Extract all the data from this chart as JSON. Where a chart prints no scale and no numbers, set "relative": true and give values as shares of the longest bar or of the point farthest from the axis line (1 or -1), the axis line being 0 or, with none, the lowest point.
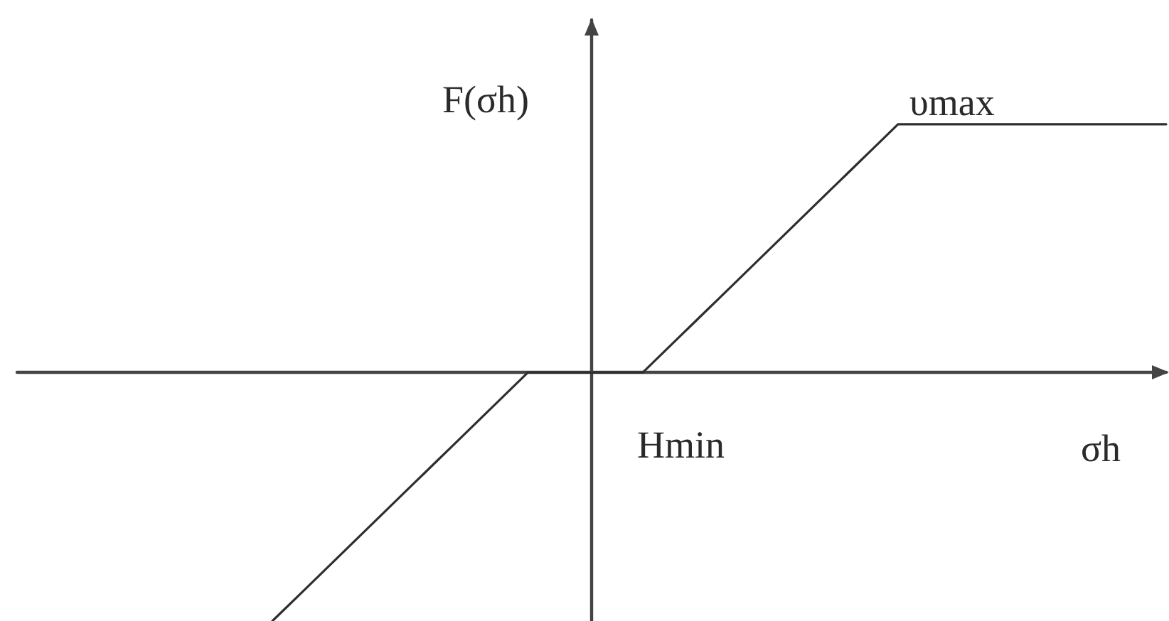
{
  "chart_data": {
    "type": "line",
    "xlabel": "σh",
    "ylabel": "F(σh)",
    "annotations": [
      {
        "text": "υmax",
        "y": 1
      },
      "Hmin"
    ],
    "relative": true,
    "categories": [
      null,
      null,
      null,
      null,
      null,
      null,
      null,
      null,
      null,
      null,
      null,
      null,
      null,
      null,
      null,
      null,
      null,
      null,
      null,
      null,
      null,
      null,
      null,
      null,
      null,
      null,
      null,
      null,
      null,
      null,
      null,
      null,
      null,
      null,
      null,
      null,
      null,
      null,
      null,
      null,
      null,
      null,
      null,
      null,
      null,
      null,
      null,
      null,
      null,
      null,
      null,
      null,
      null,
      null,
      null,
      null,
      null,
      null,
      null,
      null,
      null,
      null,
      null,
      null,
      null,
      null,
      null,
      null,
      null,
      null,
      null,
      null,
      null,
      null,
      null,
      null,
      null,
      null,
      null,
      null,
      null,
      null,
      null,
      null,
      null,
      null,
      null,
      null,
      null,
      null,
      null
    ],
    "color": "#2e2e2e",
    "values": [
      null,
      null,
      null,
      null,
      null,
      null,
      null,
      null,
      null,
      null,
      null,
      null,
      null,
      null,
      null,
      null,
      null,
      null,
      null,
      null,
      -1,
      -0.95,
      -0.9,
      -0.85,
      -0.8,
      -0.75,
      -0.7,
      -0.65,
      -0.6,
      -0.55,
      -0.5,
      -0.45,
      -0.4,
      -0.35,
      -0.3,
      -0.25,
      -0.2,
      -0.15,
      -0.1,
      -0.05,
      0,
      0,
      0,
      0,
      0,
      0,
      0,
      0,
      0,
      0,
      0.05,
      0.1,
      0.15,
      0.2,
      0.25,
      0.3,
      0.35,
      0.4,
      0.45,
      0.5,
      0.55,
      0.6,
      0.65,
      0.7,
      0.75,
      0.8,
      0.85,
      0.9,
      0.95,
      1,
      1,
      1,
      1,
      1,
      1,
      1,
      1,
      1,
      1,
      1,
      1,
      1,
      1,
      1,
      1,
      1,
      1,
      1,
      1,
      1,
      1
    ]
  }
}
